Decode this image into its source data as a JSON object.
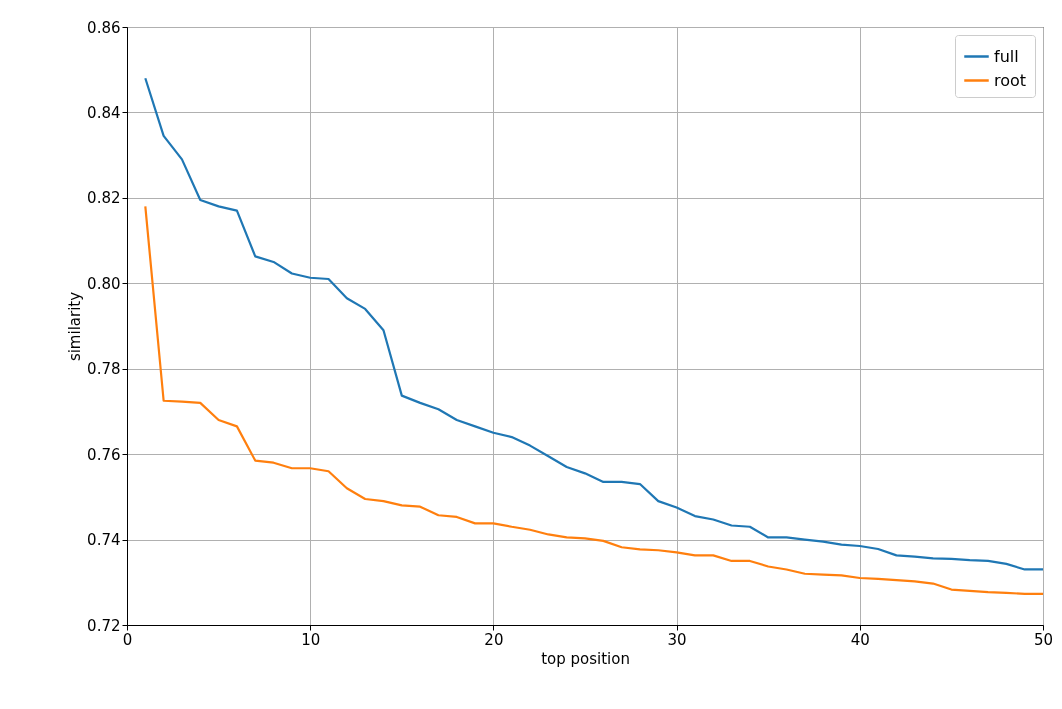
{
  "chart_data": {
    "type": "line",
    "xlabel": "top position",
    "ylabel": "similarity",
    "x": [
      1,
      2,
      3,
      4,
      5,
      6,
      7,
      8,
      9,
      10,
      11,
      12,
      13,
      14,
      15,
      16,
      17,
      18,
      19,
      20,
      21,
      22,
      23,
      24,
      25,
      26,
      27,
      28,
      29,
      30,
      31,
      32,
      33,
      34,
      35,
      36,
      37,
      38,
      39,
      40,
      41,
      42,
      43,
      44,
      45,
      46,
      47,
      48,
      49,
      50
    ],
    "series": [
      {
        "name": "full",
        "color": "#1f77b4",
        "values": [
          0.848,
          0.8345,
          0.829,
          0.8195,
          0.818,
          0.817,
          0.8063,
          0.805,
          0.8023,
          0.8013,
          0.801,
          0.7965,
          0.794,
          0.789,
          0.7737,
          0.772,
          0.7705,
          0.768,
          0.7665,
          0.765,
          0.764,
          0.762,
          0.7595,
          0.757,
          0.7555,
          0.7535,
          0.7535,
          0.753,
          0.749,
          0.7475,
          0.7455,
          0.7447,
          0.7433,
          0.743,
          0.7405,
          0.7405,
          0.74,
          0.7395,
          0.7388,
          0.7385,
          0.7378,
          0.7363,
          0.736,
          0.7356,
          0.7355,
          0.7352,
          0.735,
          0.7343,
          0.733,
          0.733
        ]
      },
      {
        "name": "root",
        "color": "#ff7f0e",
        "values": [
          0.818,
          0.7725,
          0.7723,
          0.772,
          0.768,
          0.7665,
          0.7585,
          0.758,
          0.7567,
          0.7567,
          0.756,
          0.752,
          0.7495,
          0.749,
          0.748,
          0.7477,
          0.7457,
          0.7453,
          0.7438,
          0.7438,
          0.743,
          0.7423,
          0.7412,
          0.7405,
          0.7403,
          0.7397,
          0.7382,
          0.7377,
          0.7375,
          0.737,
          0.7363,
          0.7363,
          0.735,
          0.735,
          0.7337,
          0.733,
          0.732,
          0.7318,
          0.7316,
          0.731,
          0.7308,
          0.7305,
          0.7302,
          0.7297,
          0.7283,
          0.728,
          0.7277,
          0.7275,
          0.7273,
          0.7273
        ]
      }
    ],
    "xlim": [
      0,
      50
    ],
    "xticks": [
      0,
      10,
      20,
      30,
      40,
      50
    ],
    "ylim": [
      0.72,
      0.86
    ],
    "yticks": [
      0.72,
      0.74,
      0.76,
      0.78,
      {
        "value": 0.8,
        "label": "0.80"
      },
      0.82,
      0.84,
      0.86
    ],
    "grid": true,
    "legend": "top right"
  }
}
